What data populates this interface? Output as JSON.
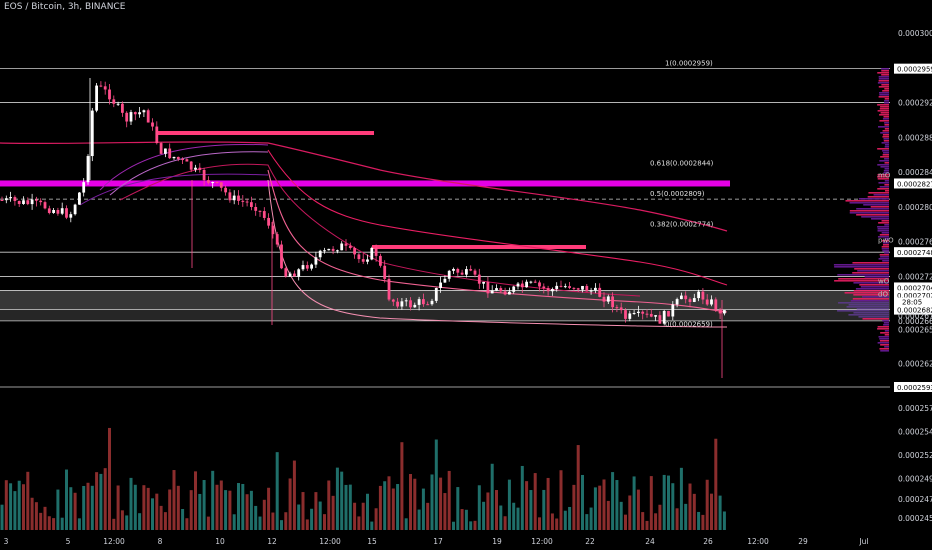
{
  "header": {
    "title": "EOS / Bitcoin, 3h, BINANCE"
  },
  "chart_data": {
    "type": "candlestick",
    "price_axis": {
      "ticks": [
        "0.0003000",
        "0.0002959",
        "0.0002920",
        "0.0002880",
        "0.0002840",
        "0.0002827",
        "0.0002800",
        "0.0002760",
        "0.0002748",
        "0.0002720",
        "0.0002704",
        "0.0002702",
        "0.0002682",
        "0.0002675",
        "0.0002669",
        "0.0002659",
        "0.0002620",
        "0.0002593"
      ],
      "current_price": "0.0002704",
      "countdown": "28:05"
    },
    "volume_axis": {
      "ticks": [
        "0.0002570",
        "0.0002545",
        "0.0002520",
        "0.0002495",
        "0.0002473",
        "0.0002453"
      ]
    },
    "time_axis": {
      "ticks": [
        "3",
        "5",
        "12:00",
        "8",
        "10",
        "12",
        "12:00",
        "15",
        "17",
        "19",
        "12:00",
        "22",
        "24",
        "26",
        "12:00",
        "29",
        "Jul"
      ]
    },
    "fib_levels": [
      {
        "label": "1(0.0002959)",
        "price": 0.0002959
      },
      {
        "label": "0.618(0.0002844)",
        "price": 0.0002844
      },
      {
        "label": "0.5(0.0002809)",
        "price": 0.0002809
      },
      {
        "label": "0.382(0.0002774)",
        "price": 0.0002774
      },
      {
        "label": "0(0.0002659)",
        "price": 0.0002659
      }
    ],
    "level_markers": [
      "mO",
      "pwO",
      "wO",
      "dO"
    ],
    "colors": {
      "up": "#26a69a",
      "down": "#ef5350",
      "candle_up": "#ffffff",
      "candle_down": "#ff4d8a",
      "magenta": "#ff00ff",
      "pink": "#ff3c7a",
      "volume_up": "#1f6f6a",
      "volume_down": "#8b2d2d"
    }
  }
}
